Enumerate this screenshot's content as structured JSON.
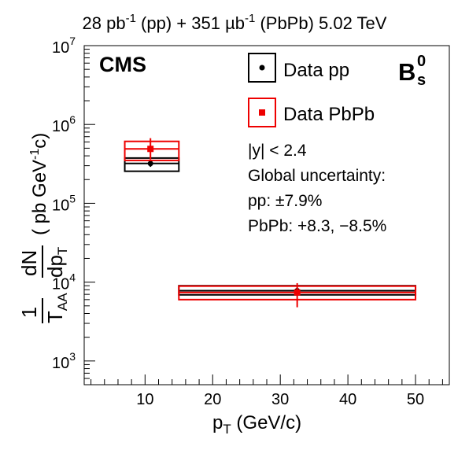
{
  "chart_data": {
    "type": "scatter",
    "title": "28 pb⁻¹ (pp) + 351 µb⁻¹ (PbPb) 5.02 TeV",
    "title_parts": {
      "pp_lumi": "28 pb",
      "pp_exp": "-1",
      "pp_label": " (pp) + 351 µb",
      "pbpb_exp": "-1",
      "pbpb_label": " (PbPb) 5.02 TeV"
    },
    "experiment_label": "CMS",
    "particle_label": {
      "base": "B",
      "sup": "0",
      "sub": "s"
    },
    "xlabel": {
      "base": "p",
      "sub": "T",
      "unit": " (GeV/c)"
    },
    "ylabel": {
      "one": "1",
      "taa": "T",
      "taa_sub": "AA",
      "dn": "dN",
      "dpt": "dp",
      "dpt_sub": "T",
      "unit_open": "( pb GeV",
      "unit_exp": "-1",
      "unit_close": "c)"
    },
    "xlim": [
      1,
      55
    ],
    "ylim": [
      500,
      10000000
    ],
    "yscale": "log",
    "x_ticks": [
      10,
      20,
      30,
      40,
      50
    ],
    "y_ticks": [
      {
        "value": 1000,
        "base": "10",
        "exp": "3"
      },
      {
        "value": 10000,
        "base": "10",
        "exp": "4"
      },
      {
        "value": 100000,
        "base": "10",
        "exp": "5"
      },
      {
        "value": 1000000,
        "base": "10",
        "exp": "6"
      },
      {
        "value": 10000000,
        "base": "10",
        "exp": "7"
      }
    ],
    "legend_position": "top-right",
    "series": [
      {
        "name": "Data pp",
        "color": "#000000",
        "marker": "circle",
        "points": [
          {
            "x": 10.8,
            "xlow": 7,
            "xhigh": 15,
            "y": 320000,
            "ylow": 290000,
            "yhigh": 355000,
            "syslow": 255000,
            "syshigh": 375000
          },
          {
            "x": 32.5,
            "xlow": 15,
            "xhigh": 50,
            "y": 7800,
            "ylow": 7000,
            "yhigh": 8600,
            "syslow": 6900,
            "syshigh": 9000
          }
        ]
      },
      {
        "name": "Data PbPb",
        "color": "#ee0000",
        "marker": "square",
        "points": [
          {
            "x": 10.8,
            "xlow": 7,
            "xhigh": 15,
            "y": 490000,
            "ylow": 360000,
            "yhigh": 670000,
            "syslow": 350000,
            "syshigh": 610000
          },
          {
            "x": 32.5,
            "xlow": 15,
            "xhigh": 50,
            "y": 7400,
            "ylow": 4800,
            "yhigh": 9700,
            "syslow": 6000,
            "syshigh": 8900
          }
        ]
      }
    ],
    "annotations": [
      "|y| < 2.4",
      "Global uncertainty:",
      "pp: ±7.9%",
      "PbPb: +8.3, −8.5%"
    ]
  }
}
